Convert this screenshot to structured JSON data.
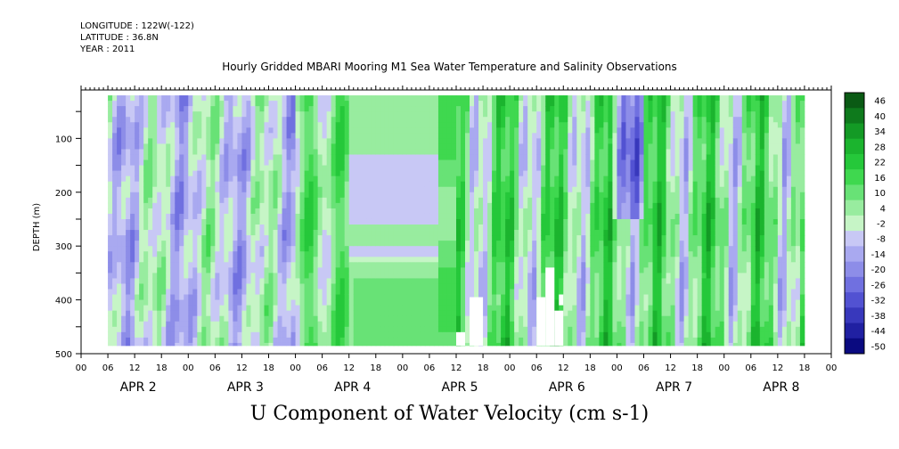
{
  "header": {
    "longitude": "LONGITUDE : 122W(-122)",
    "latitude": "LATITUDE : 36.8N",
    "year": "YEAR : 2011"
  },
  "chart_data": {
    "type": "heatmap",
    "title": "Hourly Gridded MBARI Mooring M1 Sea Water Temperature and Salinity Observations",
    "bottom_title": "U Component of Water Velocity (cm s-1)",
    "ylabel": "DEPTH (m)",
    "ylim": [
      500,
      10
    ],
    "y_ticks": [
      100,
      200,
      300,
      400,
      500
    ],
    "x_hour_ticks": [
      "00",
      "06",
      "12",
      "18",
      "00",
      "06",
      "12",
      "18",
      "00",
      "06",
      "12",
      "18",
      "00",
      "06",
      "12",
      "18",
      "00",
      "06",
      "12",
      "18",
      "00",
      "06",
      "12",
      "18",
      "00",
      "06",
      "12",
      "18",
      "00"
    ],
    "x_day_labels": [
      "APR  2",
      "APR  3",
      "APR  4",
      "APR  5",
      "APR  6",
      "APR  7",
      "APR  8"
    ],
    "colorbar_labels": [
      "46",
      "40",
      "34",
      "28",
      "22",
      "16",
      "10",
      "4",
      "-2",
      "-8",
      "-14",
      "-20",
      "-26",
      "-32",
      "-38",
      "-44",
      "-50"
    ],
    "colorbar_colors": [
      "#0a5a14",
      "#0e7a1c",
      "#139a25",
      "#1bb42e",
      "#25c83a",
      "#3fd84f",
      "#68e276",
      "#98ec9f",
      "#c6f5c6",
      "#c8c8f5",
      "#a9a9f0",
      "#8d8de8",
      "#7070e0",
      "#5252d2",
      "#3838bc",
      "#2020a2",
      "#0a0a80"
    ],
    "data_hours": [
      6,
      162
    ],
    "depth_range": [
      20,
      485
    ],
    "blank_regions": [
      {
        "hour_start": 84,
        "hour_end": 86,
        "depth_top": 460,
        "depth_bottom": 485
      },
      {
        "hour_start": 87,
        "hour_end": 90,
        "depth_top": 395,
        "depth_bottom": 485
      },
      {
        "hour_start": 102,
        "hour_end": 104,
        "depth_top": 395,
        "depth_bottom": 485
      },
      {
        "hour_start": 104,
        "hour_end": 106,
        "depth_top": 340,
        "depth_bottom": 485
      },
      {
        "hour_start": 106,
        "hour_end": 108,
        "depth_top": 420,
        "depth_bottom": 485
      },
      {
        "hour_start": 107,
        "hour_end": 108,
        "depth_top": 390,
        "depth_bottom": 410
      }
    ]
  }
}
